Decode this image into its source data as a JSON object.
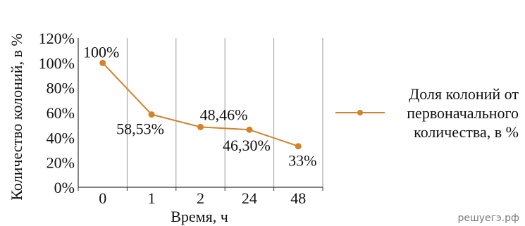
{
  "chart_data": {
    "type": "line",
    "xlabel": "Время, ч",
    "ylabel": "Количество колоний, в %",
    "categories": [
      "0",
      "1",
      "2",
      "24",
      "48"
    ],
    "yticks": [
      "0%",
      "20%",
      "40%",
      "60%",
      "80%",
      "100%",
      "120%"
    ],
    "ylim": [
      0,
      120
    ],
    "grid": "vertical",
    "legend_position": "right",
    "series": [
      {
        "name": "Доля колоний от первоначального количества, в %",
        "legend_lines": [
          "Доля колоний от",
          "первоначального",
          "количества, в %"
        ],
        "values": [
          100,
          58.53,
          48.46,
          46.3,
          33
        ],
        "data_labels": [
          "100%",
          "58,53%",
          "48,46%",
          "46,30%",
          "33%"
        ],
        "color": "#d2832a"
      }
    ]
  },
  "watermark": "решуегэ.рф"
}
